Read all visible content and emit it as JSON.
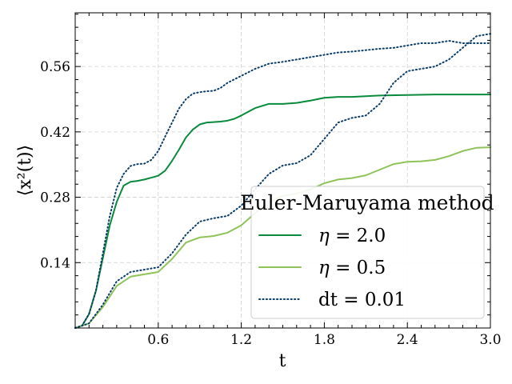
{
  "chart_data": {
    "type": "line",
    "xlabel": "t",
    "ylabel": "⟨x²(t)⟩",
    "xlim": [
      0.0,
      3.0
    ],
    "ylim": [
      0.0,
      0.675
    ],
    "x_ticks": [
      "0.6",
      "1.2",
      "1.8",
      "2.4",
      "3.0"
    ],
    "x_tick_values": [
      0.6,
      1.2,
      1.8,
      2.4,
      3.0
    ],
    "y_ticks": [
      "0.14",
      "0.28",
      "0.42",
      "0.56"
    ],
    "y_tick_values": [
      0.14,
      0.28,
      0.42,
      0.56
    ],
    "grid": true,
    "legend": {
      "title": "Euler-Maruyama method",
      "placement": "lower-right"
    },
    "series": [
      {
        "name": "η = 2.0",
        "label_sym": "η",
        "label_rest": " = 2.0",
        "color": "#0a8a3c",
        "style": "solid",
        "x": [
          0.0,
          0.05,
          0.1,
          0.15,
          0.2,
          0.25,
          0.3,
          0.35,
          0.4,
          0.45,
          0.5,
          0.55,
          0.6,
          0.65,
          0.7,
          0.75,
          0.8,
          0.85,
          0.9,
          0.95,
          1.0,
          1.05,
          1.1,
          1.15,
          1.2,
          1.3,
          1.4,
          1.5,
          1.6,
          1.7,
          1.8,
          1.9,
          2.0,
          2.2,
          2.4,
          2.6,
          2.8,
          3.0
        ],
        "y": [
          0.0,
          0.005,
          0.03,
          0.08,
          0.15,
          0.22,
          0.27,
          0.305,
          0.313,
          0.315,
          0.318,
          0.322,
          0.326,
          0.337,
          0.358,
          0.382,
          0.408,
          0.425,
          0.436,
          0.44,
          0.441,
          0.442,
          0.444,
          0.448,
          0.455,
          0.471,
          0.48,
          0.48,
          0.482,
          0.487,
          0.493,
          0.495,
          0.495,
          0.498,
          0.499,
          0.5,
          0.5,
          0.5
        ]
      },
      {
        "name": "η = 0.5",
        "label_sym": "η",
        "label_rest": " = 0.5",
        "color": "#8fc35a",
        "style": "solid",
        "x": [
          0.0,
          0.1,
          0.2,
          0.3,
          0.4,
          0.5,
          0.6,
          0.7,
          0.8,
          0.9,
          1.0,
          1.1,
          1.2,
          1.3,
          1.4,
          1.5,
          1.6,
          1.7,
          1.8,
          1.9,
          2.0,
          2.1,
          2.2,
          2.3,
          2.4,
          2.5,
          2.6,
          2.7,
          2.8,
          2.9,
          3.0
        ],
        "y": [
          0.0,
          0.01,
          0.045,
          0.09,
          0.11,
          0.115,
          0.12,
          0.148,
          0.183,
          0.194,
          0.197,
          0.204,
          0.22,
          0.246,
          0.27,
          0.283,
          0.288,
          0.297,
          0.31,
          0.318,
          0.321,
          0.327,
          0.339,
          0.351,
          0.356,
          0.357,
          0.36,
          0.368,
          0.379,
          0.386,
          0.387
        ]
      },
      {
        "name": "dt = 0.01",
        "label_sym": "",
        "label_rest": "dt = 0.01",
        "color": "#0b3d6b",
        "style": "dotted",
        "x": [
          0.0,
          0.05,
          0.1,
          0.15,
          0.2,
          0.25,
          0.3,
          0.35,
          0.4,
          0.45,
          0.5,
          0.55,
          0.6,
          0.65,
          0.7,
          0.75,
          0.8,
          0.85,
          0.9,
          0.95,
          1.0,
          1.05,
          1.1,
          1.2,
          1.3,
          1.4,
          1.5,
          1.6,
          1.7,
          1.8,
          1.9,
          2.0,
          2.1,
          2.2,
          2.3,
          2.4,
          2.5,
          2.6,
          2.7,
          2.8,
          2.9,
          3.0
        ],
        "y": [
          0.0,
          0.005,
          0.03,
          0.08,
          0.16,
          0.24,
          0.3,
          0.33,
          0.347,
          0.351,
          0.352,
          0.36,
          0.379,
          0.41,
          0.44,
          0.47,
          0.49,
          0.502,
          0.505,
          0.507,
          0.508,
          0.514,
          0.525,
          0.54,
          0.555,
          0.566,
          0.57,
          0.575,
          0.58,
          0.585,
          0.59,
          0.592,
          0.595,
          0.598,
          0.6,
          0.605,
          0.61,
          0.61,
          0.615,
          0.61,
          0.61,
          0.61
        ]
      },
      {
        "name": "",
        "color": "#0b3d6b",
        "style": "dotted",
        "x": [
          0.0,
          0.1,
          0.2,
          0.3,
          0.4,
          0.5,
          0.6,
          0.7,
          0.8,
          0.9,
          1.0,
          1.1,
          1.2,
          1.3,
          1.4,
          1.5,
          1.6,
          1.7,
          1.8,
          1.9,
          2.0,
          2.1,
          2.2,
          2.3,
          2.4,
          2.5,
          2.6,
          2.7,
          2.8,
          2.9,
          3.0
        ],
        "y": [
          0.0,
          0.01,
          0.05,
          0.1,
          0.12,
          0.125,
          0.13,
          0.16,
          0.2,
          0.228,
          0.235,
          0.24,
          0.262,
          0.297,
          0.33,
          0.348,
          0.353,
          0.37,
          0.405,
          0.44,
          0.45,
          0.455,
          0.48,
          0.525,
          0.55,
          0.555,
          0.56,
          0.575,
          0.6,
          0.625,
          0.63
        ]
      }
    ]
  }
}
